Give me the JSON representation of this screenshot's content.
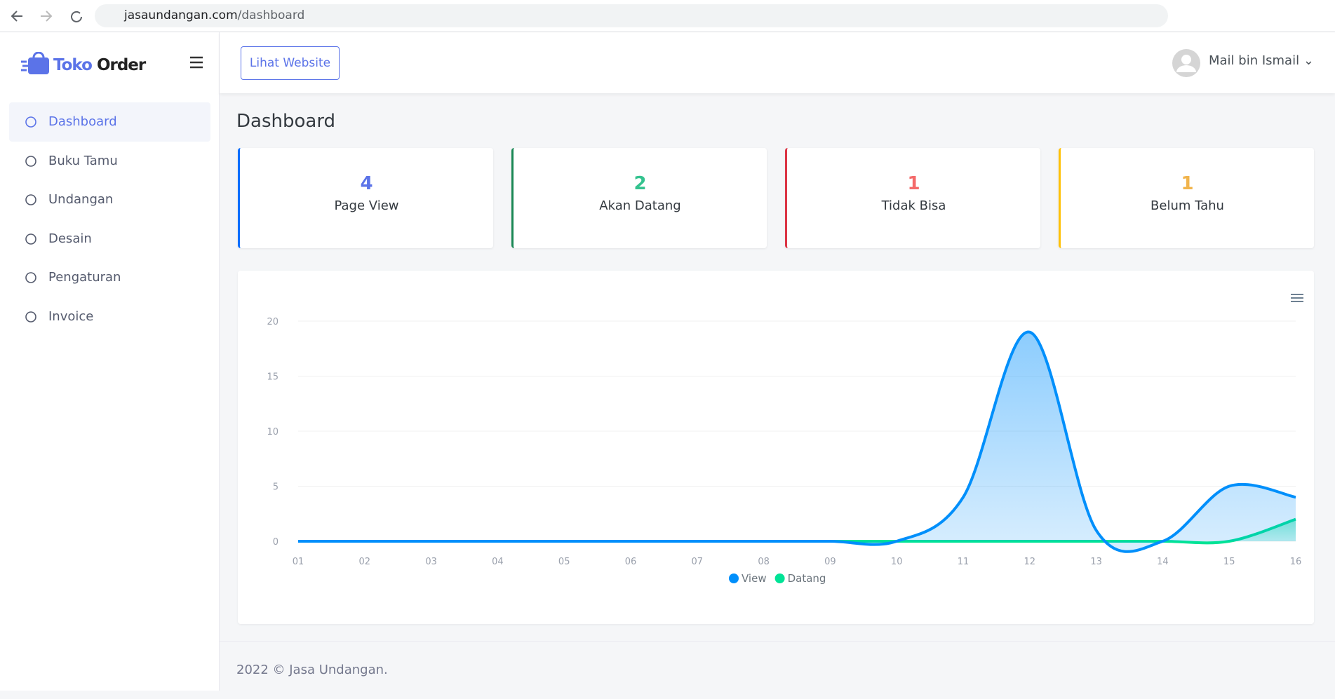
{
  "browser": {
    "url_domain": "jasaundangan.com",
    "url_path": "/dashboard"
  },
  "sidebar": {
    "brand_first": "Toko",
    "brand_second": "Order",
    "nav": [
      "Dashboard",
      "Buku Tamu",
      "Undangan",
      "Desain",
      "Pengaturan",
      "Invoice"
    ]
  },
  "header": {
    "button": "Lihat Website",
    "user": "Mail bin Ismail"
  },
  "page": {
    "title": "Dashboard"
  },
  "cards": [
    {
      "value": "4",
      "label": "Page View"
    },
    {
      "value": "2",
      "label": "Akan Datang"
    },
    {
      "value": "1",
      "label": "Tidak Bisa"
    },
    {
      "value": "1",
      "label": "Belum Tahu"
    }
  ],
  "chart_data": {
    "type": "area",
    "categories": [
      "01",
      "02",
      "03",
      "04",
      "05",
      "06",
      "07",
      "08",
      "09",
      "10",
      "11",
      "12",
      "13",
      "14",
      "15",
      "16"
    ],
    "series": [
      {
        "name": "View",
        "color": "#008ffb",
        "values": [
          0,
          0,
          0,
          0,
          0,
          0,
          0,
          0,
          0,
          0,
          4,
          19,
          1,
          0,
          5,
          4
        ]
      },
      {
        "name": "Datang",
        "color": "#00e396",
        "values": [
          0,
          0,
          0,
          0,
          0,
          0,
          0,
          0,
          0,
          0,
          0,
          0,
          0,
          0,
          0,
          2
        ]
      }
    ],
    "ylim": [
      0,
      20
    ],
    "yticks": [
      0,
      5,
      10,
      15,
      20
    ],
    "grid": true,
    "legend": "bottom"
  },
  "footer": {
    "text": "2022 © Jasa Undangan."
  }
}
